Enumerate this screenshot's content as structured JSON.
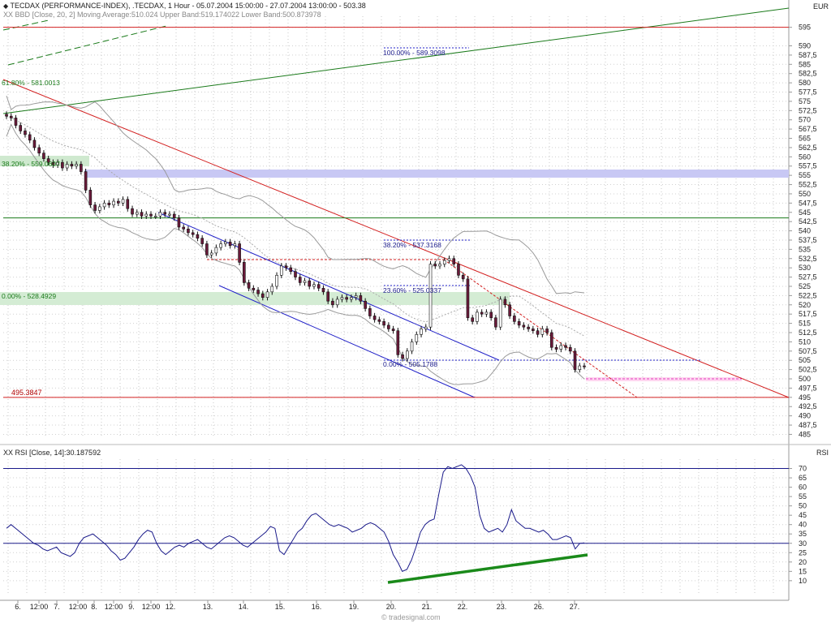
{
  "header": {
    "title": "TECDAX (PERFORMANCE-INDEX), .TECDAX, 1 Hour - 05.07.2004 15:00:00 - 27.07.2004 13:00:00 - 503.38",
    "bbd_legend": "XX BBD [Close, 20, 2] Moving Average:510.024 Upper Band:519.174022 Lower Band:500.873978",
    "rsi_legend": "XX RSI [Close, 14]:30.187592",
    "price_unit": "EUR",
    "rsi_unit": "RSI",
    "watermark": "© tradesignal.com"
  },
  "chart_data": [
    {
      "type": "candlestick",
      "title": "TECDAX (PERFORMANCE-INDEX), .TECDAX, 1 Hour",
      "ylim": [
        485,
        597
      ],
      "y_ticks": [
        485,
        487.5,
        490,
        492.5,
        495,
        497.5,
        500,
        502.5,
        505,
        507.5,
        510,
        512.5,
        515,
        517.5,
        520,
        522.5,
        525,
        527.5,
        530,
        532.5,
        535,
        537.5,
        540,
        542.5,
        545,
        547.5,
        550,
        552.5,
        555,
        557.5,
        560,
        562.5,
        565,
        567.5,
        570,
        572.5,
        575,
        577.5,
        580,
        582.5,
        585,
        587.5,
        590,
        595
      ],
      "y_tick_labels": [
        "485",
        "487,5",
        "490",
        "492,5",
        "495",
        "497,5",
        "500",
        "502,5",
        "505",
        "507,5",
        "510",
        "512,5",
        "515",
        "517,5",
        "520",
        "522,5",
        "525",
        "527,5",
        "530",
        "532,5",
        "535",
        "537,5",
        "540",
        "542,5",
        "545",
        "547,5",
        "550",
        "552,5",
        "555",
        "557,5",
        "560",
        "562,5",
        "565",
        "567,5",
        "570",
        "572,5",
        "575",
        "577,5",
        "580",
        "582,5",
        "585",
        "587,5",
        "590",
        "595"
      ],
      "x_labels": [
        "6.",
        "12:00",
        "7.",
        "12:00",
        "8.",
        "12:00",
        "9.",
        "12:00",
        "12.",
        "13.",
        "14.",
        "15.",
        "16.",
        "19.",
        "20.",
        "21.",
        "22.",
        "23.",
        "26.",
        "27."
      ],
      "close_series": [
        571,
        570.5,
        568.5,
        567,
        566,
        564.5,
        562.5,
        561,
        559.5,
        558.5,
        557.8,
        558.5,
        557,
        558,
        557.5,
        558,
        556,
        551,
        547,
        545.5,
        546.5,
        547.5,
        547,
        548,
        547.5,
        548.5,
        546,
        544.5,
        545,
        544,
        544.5,
        544,
        544,
        545,
        544.5,
        544.5,
        543.5,
        541,
        540.5,
        539.5,
        539,
        538,
        536.5,
        533.5,
        534,
        535.5,
        536.5,
        537,
        536,
        536.5,
        531.5,
        526,
        524.5,
        524,
        523,
        522,
        523.5,
        525,
        528,
        530.5,
        530,
        529,
        527.5,
        526,
        526.5,
        525,
        525.5,
        524.5,
        523.5,
        521,
        520,
        521.5,
        522,
        521.5,
        522,
        522.5,
        521,
        519,
        517,
        516,
        515.5,
        514.5,
        513.5,
        513,
        506.5,
        505.5,
        507.5,
        510,
        512,
        513.5,
        514,
        531,
        530.5,
        531,
        532,
        532.5,
        531,
        528,
        527,
        516.5,
        515.5,
        518,
        517.5,
        518,
        516.5,
        514,
        521.5,
        520,
        517,
        515.5,
        514.5,
        514,
        513.5,
        513,
        512,
        513.5,
        512.5,
        508.5,
        508,
        509,
        508.5,
        507.5,
        502.5,
        503.5,
        503.4
      ],
      "bollinger": {
        "name": "BBD [Close, 20, 2]",
        "moving_average": 510.024,
        "upper_band": 519.174022,
        "lower_band": 500.873978
      },
      "fibonacci_a": [
        {
          "label": "100.00% - 589.3098",
          "value": 589.3098
        },
        {
          "label": "61.80% - 581.0013",
          "value": 581.0013
        },
        {
          "label": "38.20% - 559.0607",
          "value": 559.0607
        },
        {
          "label": "0.00% - 528.4929",
          "value": 528.4929
        }
      ],
      "fibonacci_b": [
        {
          "label": "38.20% - 537.3168",
          "value": 537.3168
        },
        {
          "label": "23.60% - 525.0337",
          "value": 525.0337
        },
        {
          "label": "0.00% - 505.1788",
          "value": 505.1788
        }
      ],
      "level_label": "495.3847",
      "level_value": 495.3847,
      "horizontal_lines": [
        595,
        543.5,
        495
      ]
    },
    {
      "type": "line",
      "title": "XX RSI [Close, 14]:30.187592",
      "ylim": [
        5,
        74
      ],
      "y_ticks": [
        10,
        15,
        20,
        25,
        30,
        35,
        40,
        45,
        50,
        55,
        60,
        65,
        70
      ],
      "y_tick_labels": [
        "10",
        "15",
        "20",
        "25",
        "30",
        "35",
        "40",
        "45",
        "50",
        "55",
        "60",
        "65",
        "70"
      ],
      "horizontal_lines": [
        70,
        30
      ],
      "values": [
        38,
        40,
        38,
        36,
        34,
        32,
        30,
        29,
        27,
        26,
        27,
        28,
        25,
        24,
        23,
        25,
        30,
        33,
        34,
        35,
        33,
        31,
        29,
        26,
        24,
        21,
        22,
        25,
        28,
        32,
        35,
        37,
        36,
        30,
        26,
        24,
        26,
        28,
        29,
        28,
        30,
        31,
        32,
        30,
        28,
        27,
        29,
        31,
        33,
        34,
        33,
        31,
        29,
        28,
        30,
        32,
        34,
        36,
        39,
        38,
        26,
        24,
        28,
        32,
        36,
        38,
        42,
        45,
        46,
        44,
        42,
        40,
        39,
        40,
        39,
        38,
        36,
        37,
        38,
        40,
        41,
        40,
        38,
        36,
        31,
        24,
        20,
        15,
        16,
        21,
        28,
        36,
        40,
        42,
        43,
        56,
        68,
        71,
        70,
        71,
        72,
        70,
        66,
        60,
        45,
        38,
        36,
        37,
        38,
        36,
        40,
        48,
        42,
        40,
        38,
        38,
        37,
        36,
        37,
        35,
        32,
        32,
        33,
        34,
        33,
        27,
        30,
        30.19
      ]
    }
  ]
}
